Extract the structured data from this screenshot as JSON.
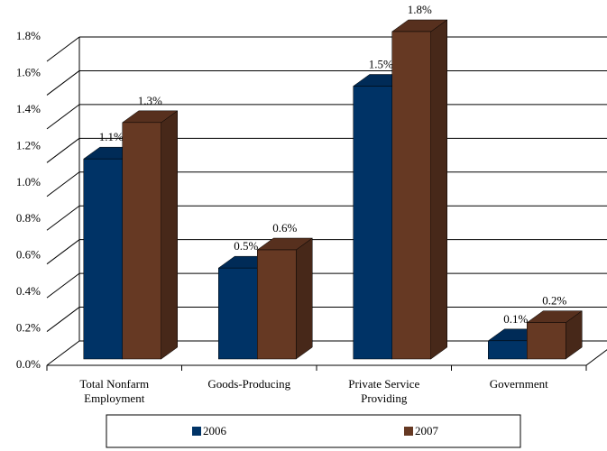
{
  "chart_data": {
    "type": "bar3d",
    "categories": [
      "Total Nonfarm Employment",
      "Goods-Producing",
      "Private Service Providing",
      "Government"
    ],
    "series": [
      {
        "name": "2006",
        "color": "#003366",
        "values": [
          1.1,
          0.5,
          1.5,
          0.1
        ],
        "value_labels": [
          "1.1%",
          "0.5%",
          "1.5%",
          "0.1%"
        ]
      },
      {
        "name": "2007",
        "color": "#663923",
        "values": [
          1.3,
          0.6,
          1.8,
          0.2
        ],
        "value_labels": [
          "1.3%",
          "0.6%",
          "1.8%",
          "0.2%"
        ]
      }
    ],
    "ylim": [
      0,
      1.8
    ],
    "yticks": [
      {
        "value": 0,
        "label": "0.0%"
      },
      {
        "value": 0.2,
        "label": "0.2%"
      },
      {
        "value": 0.4,
        "label": "0.4%"
      },
      {
        "value": 0.6,
        "label": "0.6%"
      },
      {
        "value": 0.8,
        "label": "0.8%"
      },
      {
        "value": 1,
        "label": "1.0%"
      },
      {
        "value": 1.2,
        "label": "1.2%"
      },
      {
        "value": 1.4,
        "label": "1.4%"
      },
      {
        "value": 1.6,
        "label": "1.6%"
      },
      {
        "value": 1.8,
        "label": "1.8%"
      }
    ],
    "grid": true
  }
}
